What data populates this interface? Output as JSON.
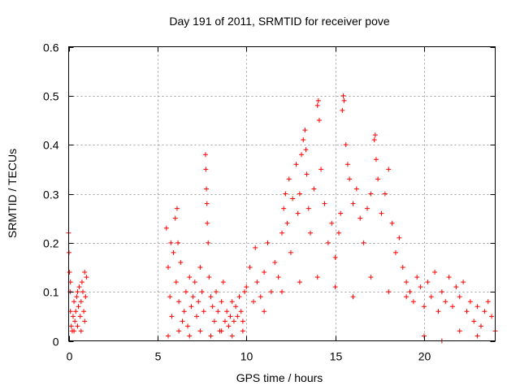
{
  "chart_data": {
    "type": "scatter",
    "title": "Day 191 of 2011, SRMTID for receiver pove",
    "xlabel": "GPS time / hours",
    "ylabel": "SRMTID / TECUs",
    "xlim": [
      0,
      24
    ],
    "ylim": [
      0,
      0.6
    ],
    "xticks": [
      0,
      5,
      10,
      15,
      20
    ],
    "yticks": [
      0,
      0.1,
      0.2,
      0.3,
      0.4,
      0.5,
      0.6
    ],
    "ytick_labels": [
      "0",
      "0.1",
      "0.2",
      "0.3",
      "0.4",
      "0.5",
      "0.6"
    ],
    "grid": true,
    "marker": "+",
    "color": "#ff0000",
    "series": [
      {
        "name": "SRMTID",
        "points": [
          [
            0.0,
            0.22
          ],
          [
            0.02,
            0.18
          ],
          [
            0.05,
            0.14
          ],
          [
            0.08,
            0.1
          ],
          [
            0.1,
            0.06
          ],
          [
            0.15,
            0.03
          ],
          [
            0.2,
            0.02
          ],
          [
            0.25,
            0.05
          ],
          [
            0.3,
            0.08
          ],
          [
            0.35,
            0.04
          ],
          [
            0.4,
            0.06
          ],
          [
            0.45,
            0.09
          ],
          [
            0.5,
            0.03
          ],
          [
            0.55,
            0.07
          ],
          [
            0.6,
            0.11
          ],
          [
            0.65,
            0.05
          ],
          [
            0.7,
            0.08
          ],
          [
            0.75,
            0.12
          ],
          [
            0.8,
            0.1
          ],
          [
            0.85,
            0.06
          ],
          [
            0.9,
            0.14
          ],
          [
            0.95,
            0.09
          ],
          [
            1.0,
            0.13
          ],
          [
            0.1,
            0.12
          ],
          [
            0.3,
            0.02
          ],
          [
            0.5,
            0.1
          ],
          [
            0.7,
            0.02
          ],
          [
            0.9,
            0.04
          ],
          [
            5.5,
            0.23
          ],
          [
            5.6,
            0.15
          ],
          [
            5.7,
            0.09
          ],
          [
            5.75,
            0.2
          ],
          [
            5.8,
            0.05
          ],
          [
            5.9,
            0.18
          ],
          [
            6.0,
            0.25
          ],
          [
            6.05,
            0.12
          ],
          [
            6.1,
            0.27
          ],
          [
            6.15,
            0.2
          ],
          [
            6.2,
            0.08
          ],
          [
            6.3,
            0.16
          ],
          [
            6.4,
            0.04
          ],
          [
            6.5,
            0.06
          ],
          [
            6.6,
            0.1
          ],
          [
            6.7,
            0.03
          ],
          [
            6.8,
            0.13
          ],
          [
            6.9,
            0.07
          ],
          [
            7.0,
            0.09
          ],
          [
            7.1,
            0.12
          ],
          [
            7.2,
            0.05
          ],
          [
            7.3,
            0.08
          ],
          [
            7.4,
            0.15
          ],
          [
            7.5,
            0.1
          ],
          [
            7.6,
            0.06
          ],
          [
            7.7,
            0.38
          ],
          [
            7.72,
            0.35
          ],
          [
            7.75,
            0.31
          ],
          [
            7.78,
            0.28
          ],
          [
            7.8,
            0.24
          ],
          [
            7.85,
            0.2
          ],
          [
            7.9,
            0.13
          ],
          [
            8.0,
            0.09
          ],
          [
            8.1,
            0.07
          ],
          [
            8.2,
            0.04
          ],
          [
            8.3,
            0.1
          ],
          [
            8.4,
            0.06
          ],
          [
            8.5,
            0.02
          ],
          [
            8.6,
            0.08
          ],
          [
            8.7,
            0.12
          ],
          [
            8.8,
            0.04
          ],
          [
            8.9,
            0.06
          ],
          [
            9.0,
            0.03
          ],
          [
            9.1,
            0.05
          ],
          [
            9.2,
            0.08
          ],
          [
            9.3,
            0.04
          ],
          [
            9.4,
            0.07
          ],
          [
            9.5,
            0.05
          ],
          [
            9.6,
            0.09
          ],
          [
            9.7,
            0.06
          ],
          [
            9.8,
            0.04
          ],
          [
            9.9,
            0.1
          ],
          [
            5.6,
            0.01
          ],
          [
            6.2,
            0.02
          ],
          [
            6.8,
            0.01
          ],
          [
            7.4,
            0.02
          ],
          [
            8.0,
            0.01
          ],
          [
            8.6,
            0.02
          ],
          [
            9.2,
            0.01
          ],
          [
            9.8,
            0.02
          ],
          [
            10.0,
            0.11
          ],
          [
            10.2,
            0.15
          ],
          [
            10.4,
            0.08
          ],
          [
            10.5,
            0.19
          ],
          [
            10.6,
            0.12
          ],
          [
            10.8,
            0.09
          ],
          [
            11.0,
            0.14
          ],
          [
            11.2,
            0.2
          ],
          [
            11.4,
            0.1
          ],
          [
            11.6,
            0.16
          ],
          [
            11.8,
            0.13
          ],
          [
            12.0,
            0.22
          ],
          [
            12.1,
            0.27
          ],
          [
            12.2,
            0.3
          ],
          [
            12.3,
            0.24
          ],
          [
            12.4,
            0.33
          ],
          [
            12.5,
            0.18
          ],
          [
            12.6,
            0.29
          ],
          [
            12.8,
            0.36
          ],
          [
            12.9,
            0.26
          ],
          [
            13.0,
            0.3
          ],
          [
            13.1,
            0.38
          ],
          [
            13.2,
            0.41
          ],
          [
            13.3,
            0.43
          ],
          [
            13.35,
            0.39
          ],
          [
            13.4,
            0.34
          ],
          [
            13.5,
            0.27
          ],
          [
            13.6,
            0.22
          ],
          [
            13.8,
            0.31
          ],
          [
            14.0,
            0.48
          ],
          [
            14.05,
            0.49
          ],
          [
            14.1,
            0.45
          ],
          [
            14.2,
            0.35
          ],
          [
            14.4,
            0.28
          ],
          [
            14.6,
            0.2
          ],
          [
            14.8,
            0.24
          ],
          [
            15.0,
            0.17
          ],
          [
            15.2,
            0.22
          ],
          [
            15.3,
            0.26
          ],
          [
            15.4,
            0.47
          ],
          [
            15.45,
            0.5
          ],
          [
            15.5,
            0.49
          ],
          [
            15.6,
            0.4
          ],
          [
            15.7,
            0.36
          ],
          [
            15.8,
            0.33
          ],
          [
            16.0,
            0.28
          ],
          [
            16.2,
            0.31
          ],
          [
            16.4,
            0.25
          ],
          [
            16.6,
            0.2
          ],
          [
            16.8,
            0.27
          ],
          [
            17.0,
            0.3
          ],
          [
            17.2,
            0.41
          ],
          [
            17.25,
            0.42
          ],
          [
            17.3,
            0.37
          ],
          [
            17.4,
            0.33
          ],
          [
            17.6,
            0.26
          ],
          [
            17.8,
            0.3
          ],
          [
            18.0,
            0.35
          ],
          [
            18.2,
            0.24
          ],
          [
            18.4,
            0.18
          ],
          [
            18.6,
            0.21
          ],
          [
            18.8,
            0.15
          ],
          [
            19.0,
            0.12
          ],
          [
            11.0,
            0.06
          ],
          [
            12.0,
            0.1
          ],
          [
            13.0,
            0.12
          ],
          [
            14.0,
            0.13
          ],
          [
            15.0,
            0.11
          ],
          [
            16.0,
            0.09
          ],
          [
            17.0,
            0.13
          ],
          [
            18.0,
            0.1
          ],
          [
            19.0,
            0.09
          ],
          [
            19.2,
            0.1
          ],
          [
            19.4,
            0.08
          ],
          [
            19.6,
            0.13
          ],
          [
            19.8,
            0.11
          ],
          [
            20.0,
            0.07
          ],
          [
            20.2,
            0.12
          ],
          [
            20.4,
            0.09
          ],
          [
            20.6,
            0.14
          ],
          [
            20.8,
            0.06
          ],
          [
            21.0,
            0.1
          ],
          [
            21.2,
            0.08
          ],
          [
            21.4,
            0.13
          ],
          [
            21.6,
            0.07
          ],
          [
            21.8,
            0.11
          ],
          [
            22.0,
            0.09
          ],
          [
            22.2,
            0.12
          ],
          [
            22.4,
            0.06
          ],
          [
            22.6,
            0.08
          ],
          [
            22.8,
            0.04
          ],
          [
            23.0,
            0.07
          ],
          [
            23.2,
            0.03
          ],
          [
            23.4,
            0.06
          ],
          [
            23.6,
            0.08
          ],
          [
            23.8,
            0.05
          ],
          [
            24.0,
            0.02
          ],
          [
            20.0,
            0.01
          ],
          [
            21.0,
            0.0
          ],
          [
            22.0,
            0.02
          ],
          [
            23.0,
            0.01
          ]
        ]
      }
    ]
  }
}
